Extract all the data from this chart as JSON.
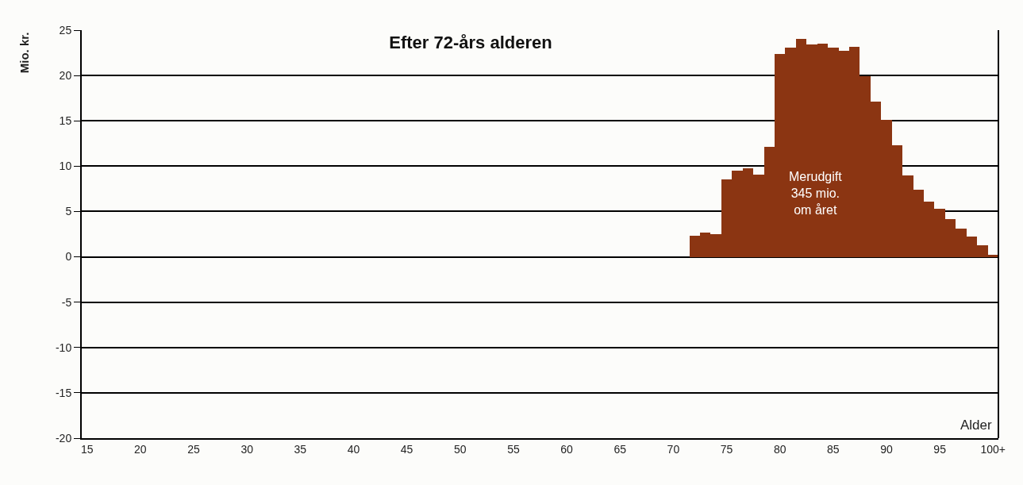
{
  "chart_data": {
    "type": "bar",
    "title": "Efter 72-års alderen",
    "ylabel": "Mio. kr.",
    "xlabel": "Alder",
    "categories": [
      "15",
      null,
      null,
      null,
      null,
      "20",
      null,
      null,
      null,
      null,
      "25",
      null,
      null,
      null,
      null,
      "30",
      null,
      null,
      null,
      null,
      "35",
      null,
      null,
      null,
      null,
      "40",
      null,
      null,
      null,
      null,
      "45",
      null,
      null,
      null,
      null,
      "50",
      null,
      null,
      null,
      null,
      "55",
      null,
      null,
      null,
      null,
      "60",
      null,
      null,
      null,
      null,
      "65",
      null,
      null,
      null,
      null,
      "70",
      null,
      null,
      null,
      null,
      "75",
      null,
      null,
      null,
      null,
      "80",
      null,
      null,
      null,
      null,
      "85",
      null,
      null,
      null,
      null,
      "90",
      null,
      null,
      null,
      null,
      "95",
      null,
      null,
      null,
      null,
      "100+"
    ],
    "series": [
      {
        "color": "#8b3512",
        "values": [
          null,
          null,
          null,
          null,
          null,
          null,
          null,
          null,
          null,
          null,
          null,
          null,
          null,
          null,
          null,
          null,
          null,
          null,
          null,
          null,
          null,
          null,
          null,
          null,
          null,
          null,
          null,
          null,
          null,
          null,
          null,
          null,
          null,
          null,
          null,
          null,
          null,
          null,
          null,
          null,
          null,
          null,
          null,
          null,
          null,
          null,
          null,
          null,
          null,
          null,
          null,
          null,
          null,
          null,
          null,
          null,
          null,
          2.3,
          2.7,
          2.5,
          8.5,
          9.5,
          9.8,
          9.1,
          12.1,
          22.4,
          23.1,
          24.0,
          23.4,
          23.5,
          23.1,
          22.7,
          23.2,
          19.9,
          17.1,
          15.1,
          12.3,
          9.0,
          7.4,
          6.1,
          5.3,
          4.2,
          3.1,
          2.2,
          1.3,
          0.2
        ]
      }
    ],
    "ylim": [
      -20,
      25
    ],
    "yticks": [
      -20,
      -15,
      -10,
      -5,
      0,
      5,
      10,
      15,
      20,
      25
    ],
    "grid": "y",
    "annotations": [
      "Merudgift\n345 mio.\nom året"
    ]
  }
}
